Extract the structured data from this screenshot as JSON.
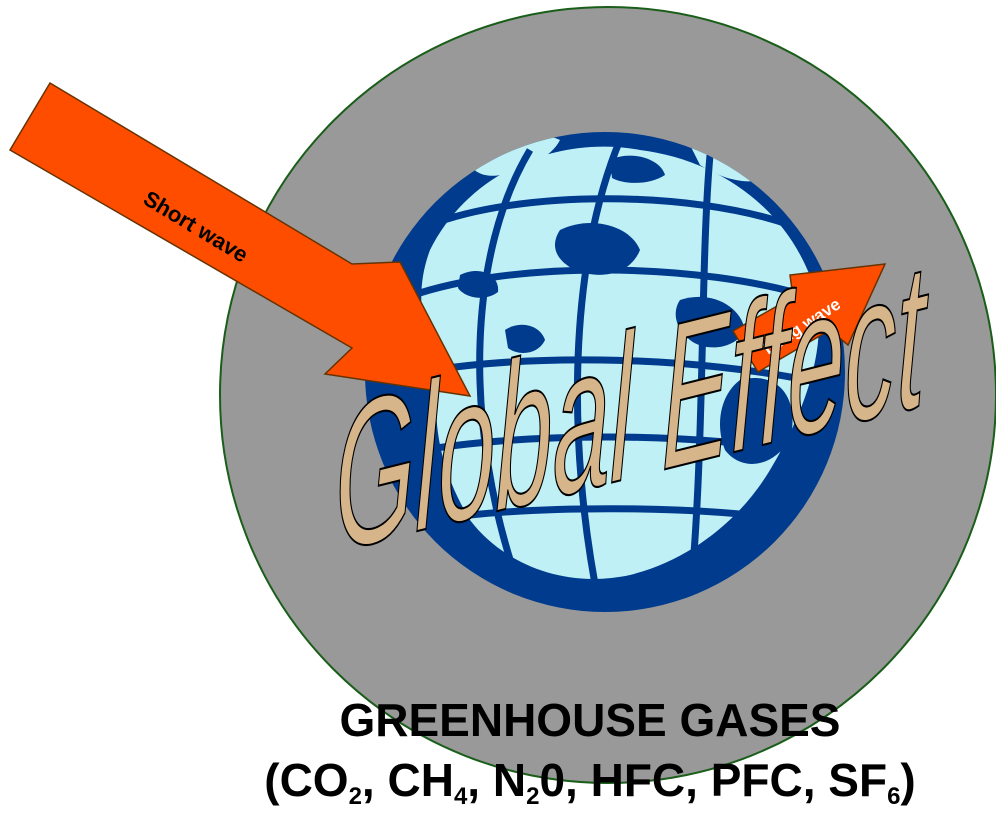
{
  "colors": {
    "atmosphere": "#999999",
    "atmosphere_border": "#1a5e1a",
    "ocean": "#003b8e",
    "land": "#bff0f5",
    "arrow": "#ff4d00",
    "effect_text": "#d6b58a"
  },
  "diagram": {
    "short_wave_label": "Short wave",
    "long_wave_label": "Long wave",
    "effect_label": "Global Effect"
  },
  "gases": {
    "title": "GREENHOUSE GASES",
    "open": "(",
    "close": ")",
    "sep": ", ",
    "co2": {
      "base": "CO",
      "sub": "2"
    },
    "ch4": {
      "base": "CH",
      "sub": "4"
    },
    "n2o": {
      "base": "N",
      "sub": "2",
      "tail": "0"
    },
    "hfc": "HFC",
    "pfc": "PFC",
    "sf6": {
      "base": "SF",
      "sub": "6"
    }
  }
}
